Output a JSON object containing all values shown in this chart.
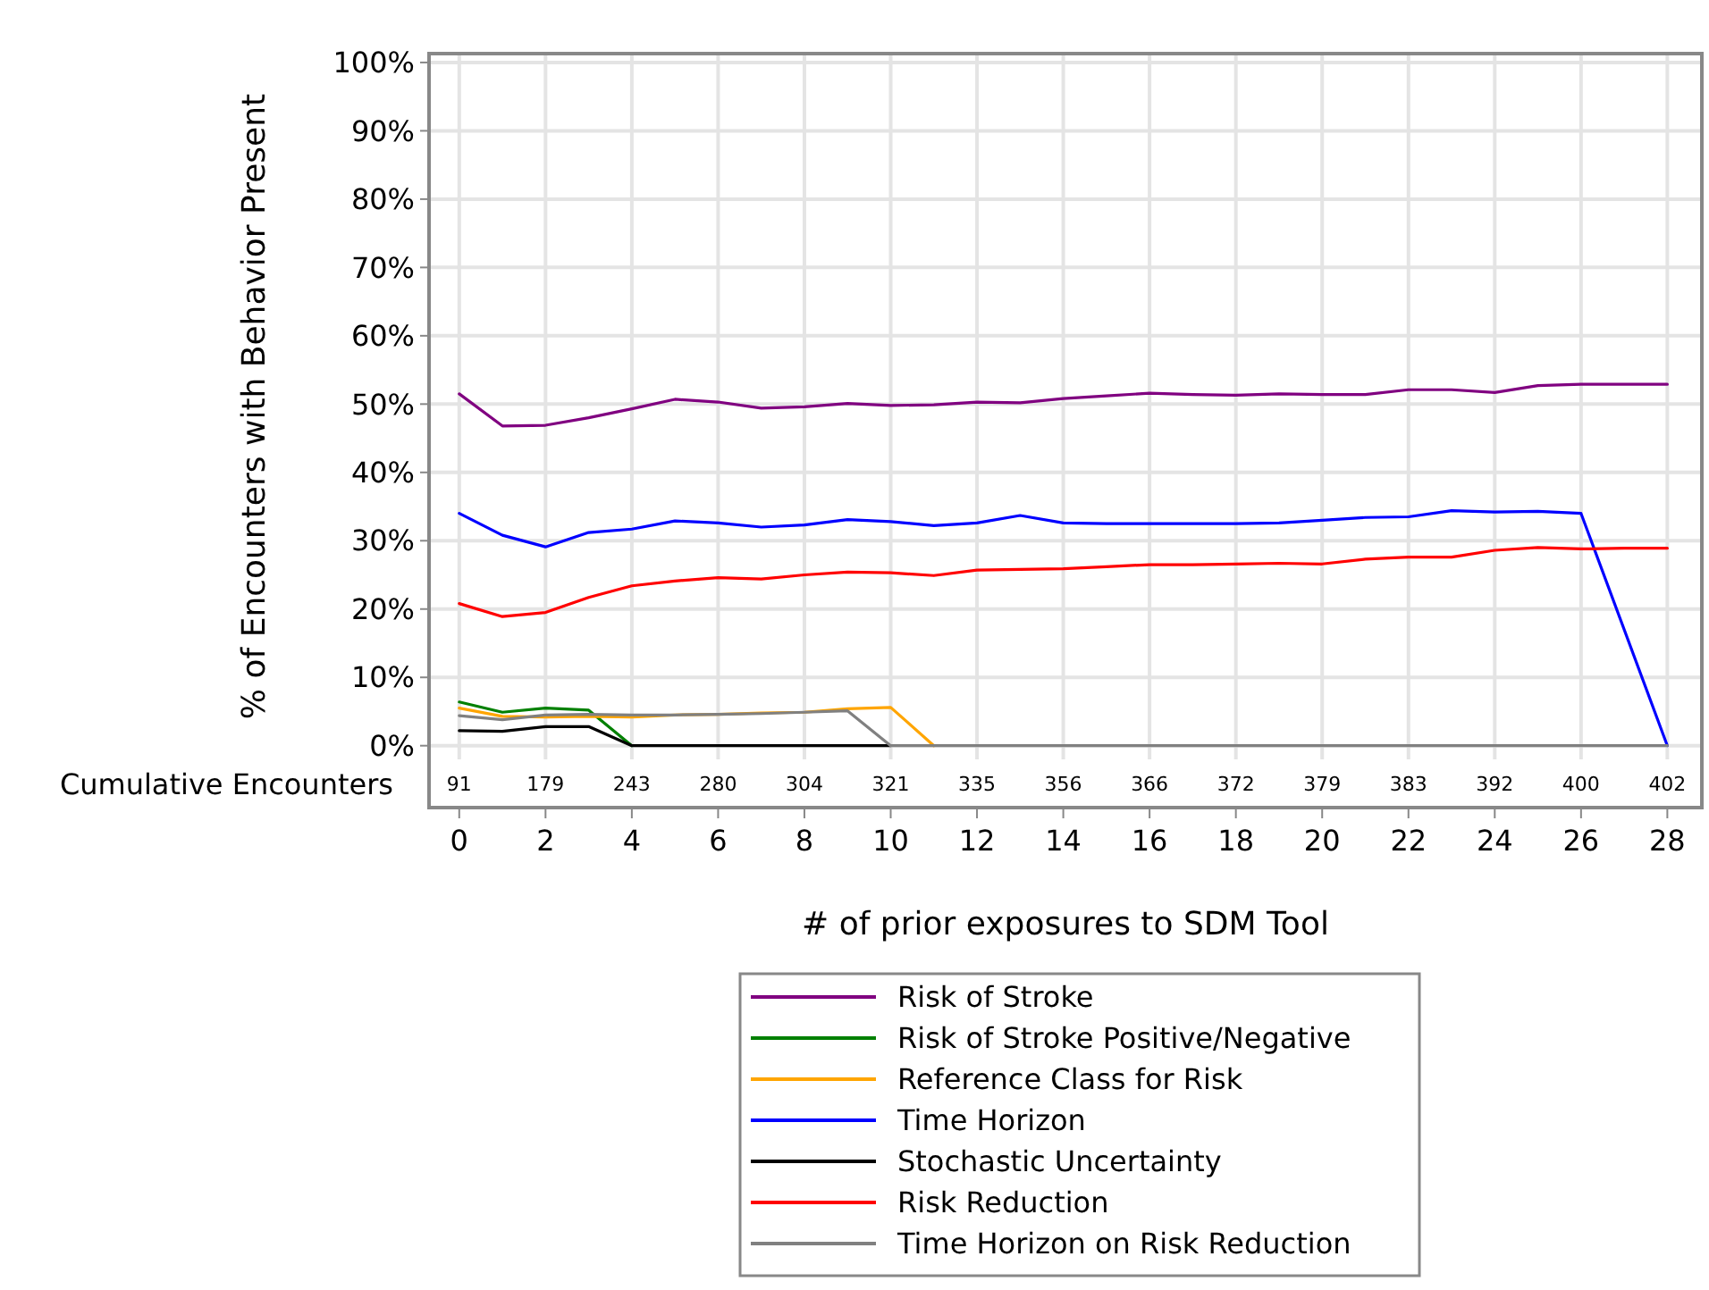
{
  "chart_data": {
    "type": "line",
    "xlabel": "# of prior exposures to SDM Tool",
    "ylabel": "% of Encounters with Behavior Present",
    "x": [
      0,
      1,
      2,
      3,
      4,
      5,
      6,
      7,
      8,
      9,
      10,
      11,
      12,
      13,
      14,
      15,
      16,
      17,
      18,
      19,
      20,
      21,
      22,
      23,
      24,
      25,
      26,
      27,
      28
    ],
    "xlim": [
      -0.7,
      28.8
    ],
    "xticks": [
      0,
      2,
      4,
      6,
      8,
      10,
      12,
      14,
      16,
      18,
      20,
      22,
      24,
      26,
      28
    ],
    "ylim": [
      -2,
      101.3
    ],
    "yticks": [
      {
        "value": 0,
        "label": "0%"
      },
      {
        "value": 10,
        "label": "10%"
      },
      {
        "value": 20,
        "label": "20%"
      },
      {
        "value": 30,
        "label": "30%"
      },
      {
        "value": 40,
        "label": "40%"
      },
      {
        "value": 50,
        "label": "50%"
      },
      {
        "value": 60,
        "label": "60%"
      },
      {
        "value": 70,
        "label": "70%"
      },
      {
        "value": 80,
        "label": "80%"
      },
      {
        "value": 90,
        "label": "90%"
      },
      {
        "value": 100,
        "label": "100%"
      }
    ],
    "annotations": [
      "Cumulative Encounters",
      "91",
      "179",
      "243",
      "280",
      "304",
      "321",
      "335",
      "356",
      "366",
      "372",
      "379",
      "383",
      "392",
      "400",
      "402"
    ],
    "grid": true,
    "legend": "bottom",
    "marker": "none",
    "line_style": "solid",
    "series": [
      {
        "name": "Risk of Stroke",
        "color": "#800080",
        "values": [
          51.5,
          46.8,
          46.9,
          48,
          49.3,
          50.7,
          50.3,
          49.4,
          49.6,
          50.1,
          49.8,
          49.9,
          50.3,
          50.2,
          50.8,
          51.2,
          51.6,
          51.4,
          51.3,
          51.5,
          51.4,
          51.4,
          52.1,
          52.1,
          51.7,
          52.7,
          52.9,
          52.9,
          52.9
        ]
      },
      {
        "name": "Risk of Stroke Positive/Negative",
        "color": "#008000",
        "values": [
          6.4,
          4.9,
          5.5,
          5.2,
          0,
          null,
          null,
          null,
          null,
          null,
          null,
          null,
          null,
          null,
          null,
          null,
          null,
          null,
          null,
          null,
          null,
          null,
          null,
          null,
          null,
          null,
          null,
          null,
          null
        ]
      },
      {
        "name": "Reference Class for Risk",
        "color": "#ffa500",
        "values": [
          5.5,
          4.3,
          4.2,
          4.3,
          4.2,
          4.5,
          4.6,
          4.8,
          4.9,
          5.4,
          5.6,
          0,
          null,
          null,
          null,
          null,
          null,
          null,
          null,
          null,
          null,
          null,
          null,
          null,
          null,
          null,
          null,
          null,
          null
        ]
      },
      {
        "name": "Time Horizon",
        "color": "#0000ff",
        "x": [
          0,
          1,
          2,
          3,
          4,
          5,
          6,
          7,
          8,
          9,
          10,
          11,
          12,
          13,
          14,
          15,
          16,
          17,
          18,
          19,
          20,
          21,
          22,
          23,
          24,
          25,
          26,
          28
        ],
        "values": [
          34,
          30.8,
          29.1,
          31.2,
          31.7,
          32.9,
          32.6,
          32,
          32.3,
          33.1,
          32.8,
          32.2,
          32.6,
          33.7,
          32.6,
          32.5,
          32.5,
          32.5,
          32.5,
          32.6,
          33,
          33.4,
          33.5,
          34.4,
          34.2,
          34.3,
          34,
          0
        ]
      },
      {
        "name": "Stochastic Uncertainty",
        "color": "#000000",
        "values": [
          2.2,
          2.1,
          2.8,
          2.8,
          0,
          0,
          0,
          0,
          0,
          0,
          0,
          null,
          null,
          null,
          null,
          null,
          null,
          null,
          null,
          null,
          null,
          null,
          null,
          null,
          null,
          null,
          null,
          null,
          null
        ]
      },
      {
        "name": "Risk Reduction",
        "color": "#ff0000",
        "values": [
          20.8,
          18.9,
          19.5,
          21.7,
          23.4,
          24.1,
          24.6,
          24.4,
          25,
          25.4,
          25.3,
          24.9,
          25.7,
          25.8,
          25.9,
          26.2,
          26.5,
          26.5,
          26.6,
          26.7,
          26.6,
          27.3,
          27.6,
          27.6,
          28.6,
          29,
          28.8,
          28.9,
          28.9
        ]
      },
      {
        "name": "Time Horizon on Risk Reduction",
        "color": "#808080",
        "values": [
          4.4,
          3.8,
          4.5,
          4.6,
          4.5,
          4.5,
          4.6,
          4.7,
          4.9,
          5.1,
          0,
          0,
          0,
          0,
          0,
          0,
          0,
          0,
          0,
          0,
          0,
          0,
          0,
          0,
          0,
          0,
          0,
          0,
          0
        ]
      }
    ]
  }
}
